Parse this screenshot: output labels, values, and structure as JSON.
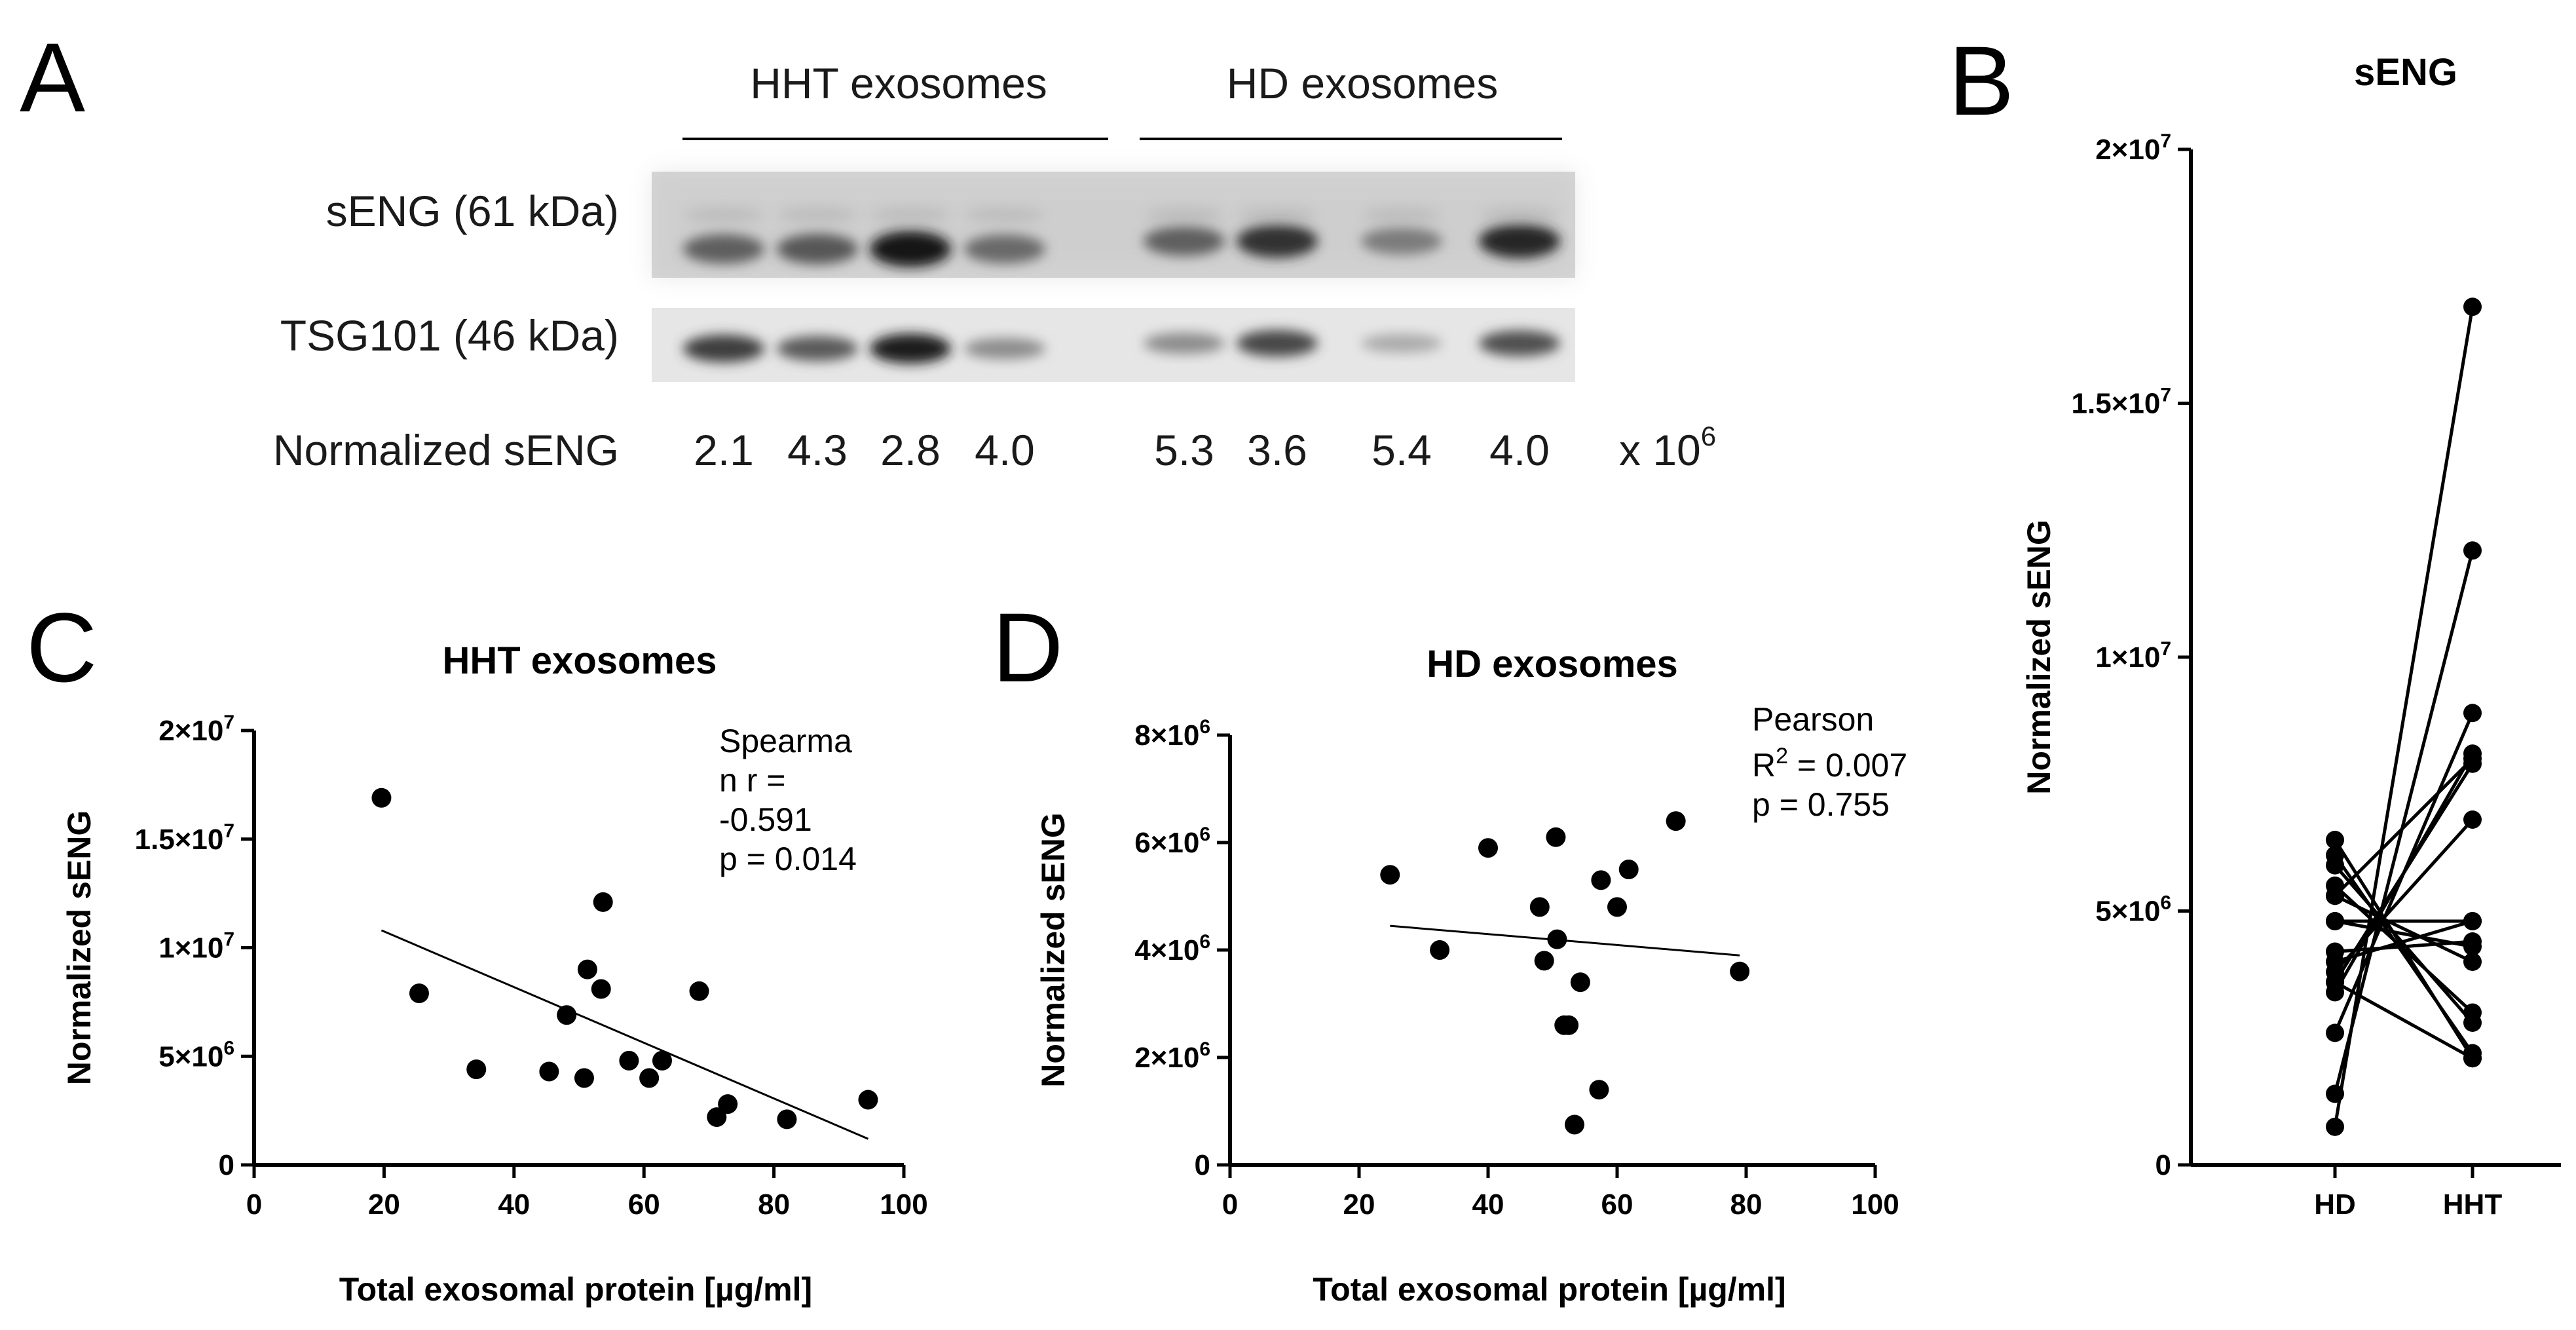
{
  "panels": {
    "a": "A",
    "b": "B",
    "c": "C",
    "d": "D"
  },
  "blot": {
    "group_hht": "HHT exosomes",
    "group_hd": "HD exosomes",
    "row1_label": "sENG (61 kDa)",
    "row2_label": "TSG101 (46 kDa)",
    "norm_label": "Normalized sENG",
    "norm_values": [
      "2.1",
      "4.3",
      "2.8",
      "4.0",
      "5.3",
      "3.6",
      "5.4",
      "4.0"
    ],
    "multiplier": "x 10",
    "multiplier_exp": "6",
    "band_intensity_row1": [
      0.55,
      0.6,
      0.95,
      0.5,
      0.55,
      0.8,
      0.4,
      0.85
    ],
    "band_intensity_row2": [
      0.75,
      0.6,
      0.9,
      0.35,
      0.35,
      0.7,
      0.2,
      0.65
    ]
  },
  "chart_data": [
    {
      "id": "C",
      "type": "scatter",
      "title": "HHT exosomes",
      "xlabel": "Total exosomal protein [µg/ml]",
      "ylabel": "Normalized sENG",
      "xlim": [
        0,
        100
      ],
      "ylim": [
        0,
        20000000
      ],
      "xticks": [
        0,
        20,
        40,
        60,
        80,
        100
      ],
      "xtick_labels": [
        "0",
        "20",
        "40",
        "60",
        "80",
        "100"
      ],
      "yticks": [
        0,
        5000000,
        10000000,
        15000000,
        20000000
      ],
      "ytick_labels": [
        {
          "m": "",
          "e": "",
          "plain": "0"
        },
        {
          "m": "5×10",
          "e": "6"
        },
        {
          "m": "1×10",
          "e": "7"
        },
        {
          "m": "1.5×10",
          "e": "7"
        },
        {
          "m": "2×10",
          "e": "7"
        }
      ],
      "points": [
        {
          "x": 19.6,
          "y": 16900000
        },
        {
          "x": 25.4,
          "y": 7900000
        },
        {
          "x": 34.2,
          "y": 4400000
        },
        {
          "x": 45.4,
          "y": 4300000
        },
        {
          "x": 48.1,
          "y": 6900000
        },
        {
          "x": 50.8,
          "y": 4000000
        },
        {
          "x": 51.3,
          "y": 9000000
        },
        {
          "x": 53.4,
          "y": 8100000
        },
        {
          "x": 53.7,
          "y": 12100000
        },
        {
          "x": 57.7,
          "y": 4800000
        },
        {
          "x": 60.8,
          "y": 4000000
        },
        {
          "x": 62.8,
          "y": 4800000
        },
        {
          "x": 68.5,
          "y": 8000000
        },
        {
          "x": 71.2,
          "y": 2200000
        },
        {
          "x": 72.9,
          "y": 2800000
        },
        {
          "x": 82.0,
          "y": 2100000
        },
        {
          "x": 94.5,
          "y": 3000000
        }
      ],
      "fit_line": [
        {
          "x": 19.6,
          "y": 10800000
        },
        {
          "x": 94.5,
          "y": 1200000
        }
      ],
      "stats_lines": [
        "Spearma",
        "n r =",
        "-0.591",
        "p = 0.014"
      ]
    },
    {
      "id": "D",
      "type": "scatter",
      "title": "HD exosomes",
      "xlabel": "Total exosomal protein [µg/ml]",
      "ylabel": "Normalized sENG",
      "xlim": [
        0,
        100
      ],
      "ylim": [
        0,
        8000000
      ],
      "xticks": [
        0,
        20,
        40,
        60,
        80,
        100
      ],
      "xtick_labels": [
        "0",
        "20",
        "40",
        "60",
        "80",
        "100"
      ],
      "yticks": [
        0,
        2000000,
        4000000,
        6000000,
        8000000
      ],
      "ytick_labels": [
        {
          "m": "",
          "e": "",
          "plain": "0"
        },
        {
          "m": "2×10",
          "e": "6"
        },
        {
          "m": "4×10",
          "e": "6"
        },
        {
          "m": "6×10",
          "e": "6"
        },
        {
          "m": "8×10",
          "e": "6"
        }
      ],
      "points": [
        {
          "x": 24.8,
          "y": 5400000
        },
        {
          "x": 32.5,
          "y": 4000000
        },
        {
          "x": 40.0,
          "y": 5900000
        },
        {
          "x": 48.0,
          "y": 4800000
        },
        {
          "x": 48.7,
          "y": 3800000
        },
        {
          "x": 50.5,
          "y": 6100000
        },
        {
          "x": 50.7,
          "y": 4200000
        },
        {
          "x": 51.8,
          "y": 2600000
        },
        {
          "x": 52.5,
          "y": 2600000
        },
        {
          "x": 53.4,
          "y": 750000
        },
        {
          "x": 54.3,
          "y": 3400000
        },
        {
          "x": 57.2,
          "y": 1400000
        },
        {
          "x": 57.5,
          "y": 5300000
        },
        {
          "x": 60.0,
          "y": 4800000
        },
        {
          "x": 61.8,
          "y": 5500000
        },
        {
          "x": 69.1,
          "y": 6400000
        },
        {
          "x": 79.0,
          "y": 3600000
        }
      ],
      "fit_line": [
        {
          "x": 24.8,
          "y": 4450000
        },
        {
          "x": 79.0,
          "y": 3900000
        }
      ],
      "stats_lines": [
        "Pearson",
        "R",
        "2",
        " = 0.007",
        "p = 0.755"
      ]
    },
    {
      "id": "B",
      "type": "line",
      "title": "sENG",
      "xlabel": "",
      "ylabel": "Normalized sENG",
      "categories": [
        "HD",
        "HHT"
      ],
      "ylim": [
        0,
        20000000
      ],
      "yticks": [
        0,
        5000000,
        10000000,
        15000000,
        20000000
      ],
      "ytick_labels": [
        {
          "m": "",
          "e": "",
          "plain": "0"
        },
        {
          "m": "5×10",
          "e": "6"
        },
        {
          "m": "1×10",
          "e": "7"
        },
        {
          "m": "1.5×10",
          "e": "7"
        },
        {
          "m": "2×10",
          "e": "7"
        }
      ],
      "pairs": [
        {
          "HD": 750000,
          "HHT": 16900000
        },
        {
          "HD": 1400000,
          "HHT": 12100000
        },
        {
          "HD": 2600000,
          "HHT": 8900000
        },
        {
          "HD": 3400000,
          "HHT": 8100000
        },
        {
          "HD": 3600000,
          "HHT": 7900000
        },
        {
          "HD": 3800000,
          "HHT": 6800000
        },
        {
          "HD": 4000000,
          "HHT": 4800000
        },
        {
          "HD": 4200000,
          "HHT": 4400000
        },
        {
          "HD": 4800000,
          "HHT": 4300000
        },
        {
          "HD": 5300000,
          "HHT": 4000000
        },
        {
          "HD": 5500000,
          "HHT": 3000000
        },
        {
          "HD": 5900000,
          "HHT": 2800000
        },
        {
          "HD": 6100000,
          "HHT": 2200000
        },
        {
          "HD": 6400000,
          "HHT": 2100000
        },
        {
          "HD": 3600000,
          "HHT": 2100000
        },
        {
          "HD": 5300000,
          "HHT": 8000000
        },
        {
          "HD": 4800000,
          "HHT": 4800000
        }
      ]
    }
  ]
}
